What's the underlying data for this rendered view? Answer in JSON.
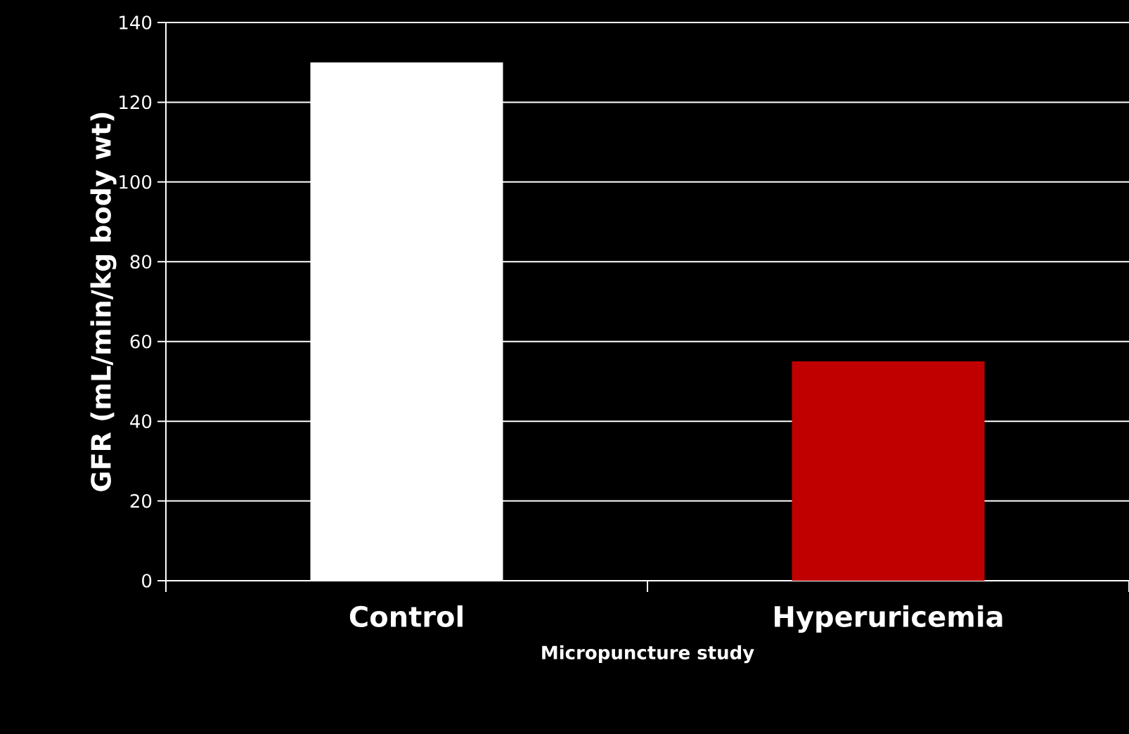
{
  "chart_data": {
    "type": "bar",
    "categories": [
      "Control",
      "Hyperuricemia"
    ],
    "values": [
      130,
      55
    ],
    "colors": [
      "#ffffff",
      "#c00000"
    ],
    "xlabel": "Micropuncture study",
    "ylabel": "GFR (mL/min/kg body wt)",
    "ylim": [
      0,
      140
    ],
    "yticks": [
      0,
      20,
      40,
      60,
      80,
      100,
      120,
      140
    ],
    "grid": "y"
  }
}
